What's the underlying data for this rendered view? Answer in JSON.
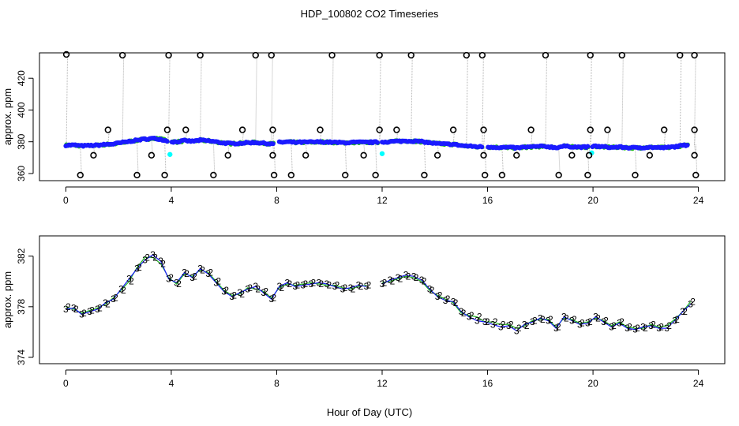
{
  "figure": {
    "title": "HDP_100802  CO2 Timeseries",
    "shared_xlabel": "Hour of Day (UTC)"
  },
  "colors": {
    "axis": "#000000",
    "raw_gray": "#b0b0b0",
    "raw_circle": "#000000",
    "series_blue": "#1a1aff",
    "series_green": "#22bb22",
    "series_cyan": "#00ffff"
  },
  "chart_data": [
    {
      "type": "scatter",
      "title": "",
      "xlabel": "",
      "ylabel": "approx. ppm",
      "xlim": [
        -1,
        25
      ],
      "ylim": [
        355.5,
        436
      ],
      "xticks": [
        0,
        4,
        8,
        12,
        16,
        20,
        24
      ],
      "yticks": [
        360,
        380,
        400,
        420
      ],
      "outliers_high": [
        [
          0.02,
          435
        ],
        [
          2.15,
          434.5
        ],
        [
          3.9,
          434.5
        ],
        [
          5.1,
          434.5
        ],
        [
          7.2,
          434.5
        ],
        [
          7.8,
          434.5
        ],
        [
          10.1,
          434.5
        ],
        [
          11.9,
          434.5
        ],
        [
          13.1,
          434.5
        ],
        [
          15.2,
          434.5
        ],
        [
          15.8,
          434.5
        ],
        [
          18.2,
          434.5
        ],
        [
          19.9,
          434.5
        ],
        [
          21.1,
          434.5
        ],
        [
          23.3,
          434.5
        ],
        [
          23.85,
          434.5
        ]
      ],
      "outliers_mid": [
        [
          1.6,
          387.5
        ],
        [
          3.85,
          387.5
        ],
        [
          4.55,
          387.5
        ],
        [
          6.7,
          387.5
        ],
        [
          7.85,
          387.5
        ],
        [
          9.65,
          387.5
        ],
        [
          11.9,
          387.5
        ],
        [
          12.55,
          387.5
        ],
        [
          14.7,
          387.5
        ],
        [
          15.85,
          387.5
        ],
        [
          17.65,
          387.5
        ],
        [
          19.9,
          387.5
        ],
        [
          20.55,
          387.5
        ],
        [
          22.7,
          387.5
        ],
        [
          23.85,
          387.5
        ]
      ],
      "outliers_low": [
        [
          0.55,
          359
        ],
        [
          1.05,
          371.5
        ],
        [
          2.7,
          359
        ],
        [
          3.25,
          371.5
        ],
        [
          3.75,
          359
        ],
        [
          5.6,
          359
        ],
        [
          6.15,
          371.5
        ],
        [
          7.85,
          371.5
        ],
        [
          7.9,
          359
        ],
        [
          8.55,
          359
        ],
        [
          9.1,
          371.5
        ],
        [
          10.6,
          359
        ],
        [
          11.3,
          371.5
        ],
        [
          11.75,
          359
        ],
        [
          13.6,
          359
        ],
        [
          14.1,
          371.5
        ],
        [
          15.85,
          371.5
        ],
        [
          15.9,
          359
        ],
        [
          16.55,
          359
        ],
        [
          17.1,
          371.5
        ],
        [
          18.7,
          359
        ],
        [
          19.2,
          371.5
        ],
        [
          19.8,
          359
        ],
        [
          19.85,
          371.5
        ],
        [
          21.6,
          359
        ],
        [
          22.15,
          371.5
        ],
        [
          23.85,
          371.5
        ],
        [
          23.9,
          359
        ]
      ],
      "cyan_points": [
        [
          3.95,
          372
        ],
        [
          12.0,
          372.5
        ],
        [
          19.95,
          373
        ]
      ],
      "series": [
        {
          "name": "blue",
          "color": "#1a1aff"
        },
        {
          "name": "green",
          "color": "#22bb22"
        }
      ],
      "gaps": [
        [
          3.85,
          4.0
        ],
        [
          7.9,
          8.05
        ],
        [
          11.85,
          12.0
        ],
        [
          15.8,
          16.0
        ],
        [
          19.8,
          19.95
        ],
        [
          23.6,
          24.0
        ]
      ]
    },
    {
      "type": "line",
      "title": "",
      "xlabel": "",
      "ylabel": "approx. ppm",
      "xlim": [
        -1,
        25
      ],
      "ylim": [
        373.5,
        383.6
      ],
      "xticks": [
        0,
        4,
        8,
        12,
        16,
        20,
        24
      ],
      "yticks": [
        374,
        378,
        382
      ],
      "markers": {
        "blue": "3",
        "green": "2"
      },
      "x": [
        0.0,
        0.3,
        0.6,
        0.9,
        1.2,
        1.5,
        1.8,
        2.1,
        2.4,
        2.7,
        3.0,
        3.3,
        3.6,
        3.9,
        4.2,
        4.5,
        4.8,
        5.1,
        5.4,
        5.7,
        6.0,
        6.3,
        6.6,
        6.9,
        7.2,
        7.5,
        7.8,
        8.1,
        8.4,
        8.7,
        9.0,
        9.3,
        9.6,
        9.9,
        10.2,
        10.5,
        10.8,
        11.1,
        11.4,
        11.7,
        12.0,
        12.3,
        12.6,
        12.9,
        13.2,
        13.5,
        13.8,
        14.1,
        14.4,
        14.7,
        15.0,
        15.3,
        15.6,
        15.9,
        16.2,
        16.5,
        16.8,
        17.1,
        17.4,
        17.7,
        18.0,
        18.3,
        18.6,
        18.9,
        19.2,
        19.5,
        19.8,
        20.1,
        20.4,
        20.7,
        21.0,
        21.3,
        21.6,
        21.9,
        22.2,
        22.5,
        22.8,
        23.1,
        23.4,
        23.7
      ],
      "blue": [
        377.8,
        377.9,
        377.4,
        377.6,
        377.8,
        378.3,
        378.6,
        379.4,
        380.2,
        381.0,
        381.7,
        382.1,
        381.6,
        380.2,
        379.9,
        380.7,
        380.3,
        381.0,
        380.6,
        379.9,
        379.2,
        378.8,
        379.1,
        379.4,
        379.6,
        379.1,
        378.6,
        379.6,
        379.9,
        379.6,
        379.7,
        379.8,
        379.9,
        379.8,
        379.6,
        379.4,
        379.5,
        379.7,
        379.6,
        null,
        379.8,
        380.1,
        380.3,
        380.5,
        380.4,
        380.1,
        379.4,
        378.8,
        378.5,
        378.4,
        377.6,
        377.2,
        376.9,
        376.8,
        376.6,
        376.4,
        376.5,
        376.1,
        376.6,
        376.8,
        377.1,
        376.9,
        376.3,
        377.2,
        376.9,
        376.6,
        376.7,
        377.2,
        376.8,
        376.4,
        376.7,
        376.3,
        376.2,
        376.4,
        376.5,
        376.3,
        376.3,
        376.9,
        377.6,
        378.2
      ],
      "green": [
        378.0,
        377.8,
        377.5,
        377.7,
        377.9,
        378.2,
        378.7,
        379.3,
        380.0,
        381.1,
        381.9,
        381.9,
        381.4,
        380.3,
        379.8,
        380.6,
        380.4,
        380.9,
        380.7,
        380.0,
        379.3,
        378.9,
        379.0,
        379.5,
        379.4,
        379.2,
        378.7,
        379.5,
        379.8,
        379.7,
        379.8,
        379.9,
        379.8,
        379.7,
        379.7,
        379.5,
        379.4,
        379.6,
        379.7,
        null,
        379.9,
        380.0,
        380.2,
        380.4,
        380.3,
        380.0,
        379.3,
        378.9,
        378.6,
        378.3,
        377.5,
        377.3,
        377.2,
        376.8,
        376.8,
        376.6,
        376.6,
        376.3,
        376.5,
        376.9,
        377.0,
        377.0,
        376.4,
        377.1,
        377.0,
        376.7,
        376.8,
        377.1,
        376.9,
        376.5,
        376.8,
        376.4,
        376.3,
        376.3,
        376.6,
        376.4,
        376.5,
        377.0,
        377.6,
        378.4
      ]
    }
  ]
}
